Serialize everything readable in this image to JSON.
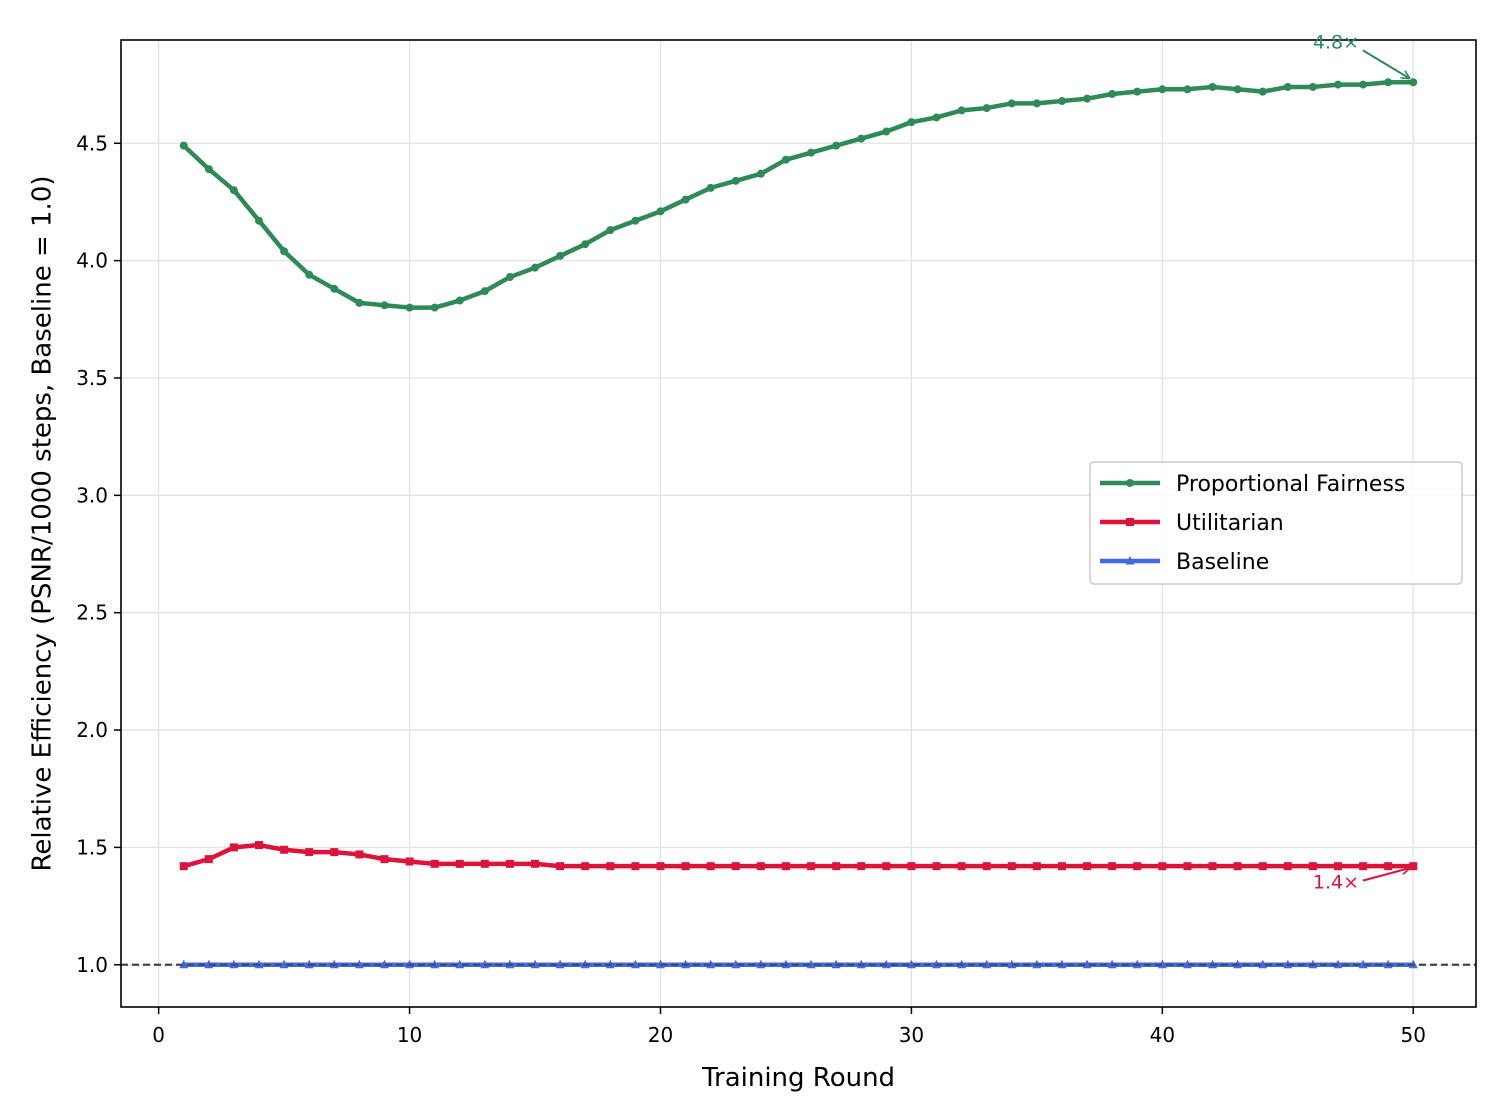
{
  "chart_data": {
    "type": "line",
    "title": "",
    "xlabel": "Training Round",
    "ylabel": "Relative Efficiency (PSNR/1000 steps, Baseline = 1.0)",
    "xlim": [
      -1.5,
      52.5
    ],
    "ylim": [
      0.82,
      4.94
    ],
    "xticks": [
      0,
      10,
      20,
      30,
      40,
      50
    ],
    "xtick_labels": [
      "0",
      "10",
      "20",
      "30",
      "40",
      "50"
    ],
    "yticks": [
      1.0,
      1.5,
      2.0,
      2.5,
      3.0,
      3.5,
      4.0,
      4.5
    ],
    "ytick_labels": [
      "1.0",
      "1.5",
      "2.0",
      "2.5",
      "3.0",
      "3.5",
      "4.0",
      "4.5"
    ],
    "grid": true,
    "legend_position": "center-right",
    "reference_line": {
      "y": 1.0,
      "style": "dashed",
      "color": "#444444"
    },
    "x": [
      1,
      2,
      3,
      4,
      5,
      6,
      7,
      8,
      9,
      10,
      11,
      12,
      13,
      14,
      15,
      16,
      17,
      18,
      19,
      20,
      21,
      22,
      23,
      24,
      25,
      26,
      27,
      28,
      29,
      30,
      31,
      32,
      33,
      34,
      35,
      36,
      37,
      38,
      39,
      40,
      41,
      42,
      43,
      44,
      45,
      46,
      47,
      48,
      49,
      50
    ],
    "series": [
      {
        "name": "Proportional Fairness",
        "color": "#2e8b57",
        "marker": "circle",
        "values": [
          4.49,
          4.39,
          4.3,
          4.17,
          4.04,
          3.94,
          3.88,
          3.82,
          3.81,
          3.8,
          3.8,
          3.83,
          3.87,
          3.93,
          3.97,
          4.02,
          4.07,
          4.13,
          4.17,
          4.21,
          4.26,
          4.31,
          4.34,
          4.37,
          4.43,
          4.46,
          4.49,
          4.52,
          4.55,
          4.59,
          4.61,
          4.64,
          4.65,
          4.67,
          4.67,
          4.68,
          4.69,
          4.71,
          4.72,
          4.73,
          4.73,
          4.74,
          4.73,
          4.72,
          4.74,
          4.74,
          4.75,
          4.75,
          4.76,
          4.76
        ]
      },
      {
        "name": "Utilitarian",
        "color": "#dc143c",
        "marker": "square",
        "values": [
          1.42,
          1.45,
          1.5,
          1.51,
          1.49,
          1.48,
          1.48,
          1.47,
          1.45,
          1.44,
          1.43,
          1.43,
          1.43,
          1.43,
          1.43,
          1.42,
          1.42,
          1.42,
          1.42,
          1.42,
          1.42,
          1.42,
          1.42,
          1.42,
          1.42,
          1.42,
          1.42,
          1.42,
          1.42,
          1.42,
          1.42,
          1.42,
          1.42,
          1.42,
          1.42,
          1.42,
          1.42,
          1.42,
          1.42,
          1.42,
          1.42,
          1.42,
          1.42,
          1.42,
          1.42,
          1.42,
          1.42,
          1.42,
          1.42,
          1.42
        ]
      },
      {
        "name": "Baseline",
        "color": "#4169e1",
        "marker": "triangle",
        "values": [
          1,
          1,
          1,
          1,
          1,
          1,
          1,
          1,
          1,
          1,
          1,
          1,
          1,
          1,
          1,
          1,
          1,
          1,
          1,
          1,
          1,
          1,
          1,
          1,
          1,
          1,
          1,
          1,
          1,
          1,
          1,
          1,
          1,
          1,
          1,
          1,
          1,
          1,
          1,
          1,
          1,
          1,
          1,
          1,
          1,
          1,
          1,
          1,
          1,
          1
        ]
      }
    ],
    "annotations": [
      {
        "text": "4.8×",
        "color": "#2e8b57",
        "point": [
          50,
          4.76
        ],
        "text_at": [
          46,
          4.93
        ]
      },
      {
        "text": "1.4×",
        "color": "#dc143c",
        "point": [
          50,
          1.42
        ],
        "text_at": [
          46,
          1.35
        ]
      }
    ]
  }
}
